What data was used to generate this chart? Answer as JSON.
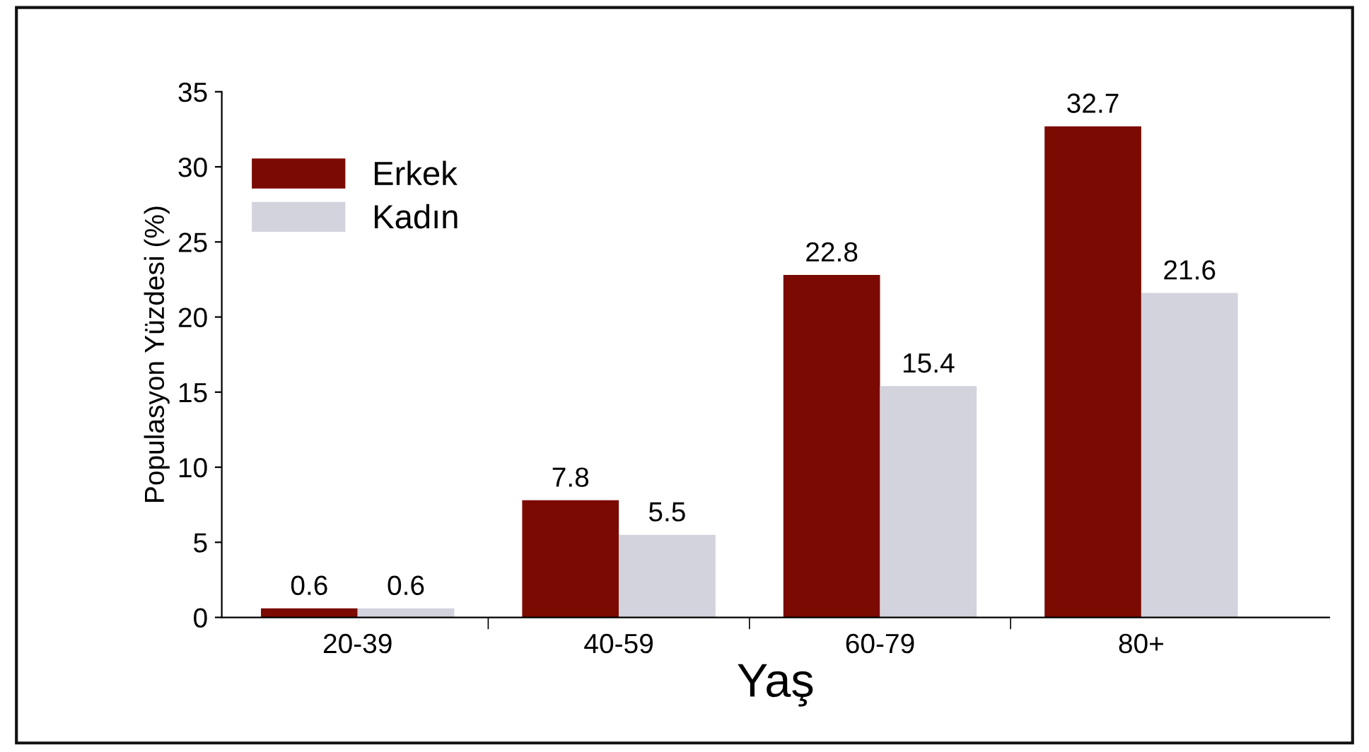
{
  "chart_data": {
    "type": "bar",
    "categories": [
      "20-39",
      "40-59",
      "60-79",
      "80+"
    ],
    "series": [
      {
        "name": "Erkek",
        "color": "#7b0a02",
        "values": [
          0.6,
          7.8,
          22.8,
          32.7
        ]
      },
      {
        "name": "Kadın",
        "color": "#d3d3de",
        "values": [
          0.6,
          5.5,
          15.4,
          21.6
        ]
      }
    ],
    "xlabel": "Yaş",
    "ylabel": "Populasyon Yüzdesi (%)",
    "ylim": [
      0,
      35
    ],
    "yticks": [
      0,
      5,
      10,
      15,
      20,
      25,
      30,
      35
    ],
    "data_labels": true,
    "legend": "top left",
    "grid": false
  }
}
